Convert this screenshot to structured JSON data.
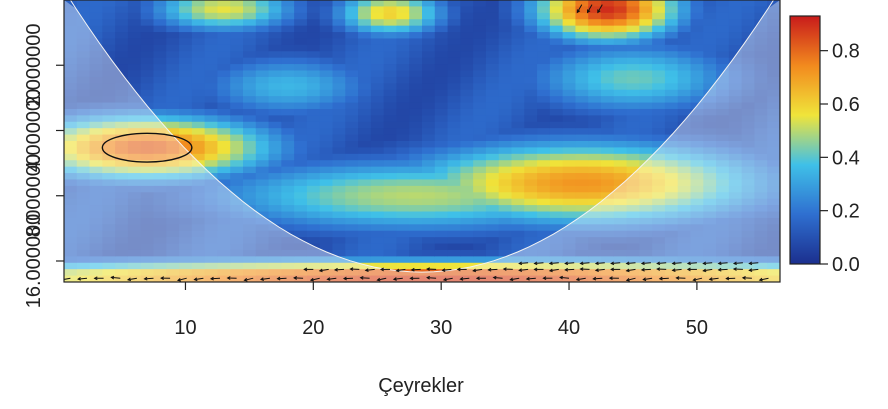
{
  "chart_data": {
    "type": "heatmap",
    "subtype": "wavelet-coherence",
    "xlabel": "Çeyrekler",
    "ylabel": "",
    "xlim": [
      1,
      56
    ],
    "x_ticks": [
      10,
      20,
      30,
      40,
      50
    ],
    "y_scale": "log2",
    "ylim_period": [
      1,
      20
    ],
    "y_ticks": [
      {
        "period": 2,
        "label": "2.000000"
      },
      {
        "period": 4,
        "label": "4.000000"
      },
      {
        "period": 8,
        "label": "8.000000"
      },
      {
        "period": 16,
        "label": "16.000000"
      }
    ],
    "colorbar": {
      "range": [
        0,
        0.93
      ],
      "ticks": [
        0.0,
        0.2,
        0.4,
        0.6,
        0.8
      ],
      "tick_labels": [
        "0.0",
        "0.2",
        "0.4",
        "0.6",
        "0.8"
      ],
      "colors": [
        "#1b2f8e",
        "#2f6fd0",
        "#3fc0e8",
        "#f0e43a",
        "#f28a1e",
        "#c81b1b"
      ]
    },
    "coherence_features": [
      {
        "x": 7,
        "period": 4.8,
        "value": 0.82,
        "sx": 7,
        "sy": 0.35
      },
      {
        "x": 43,
        "period": 1.1,
        "value": 0.9,
        "sx": 4,
        "sy": 0.35
      },
      {
        "x": 26,
        "period": 1.15,
        "value": 0.6,
        "sx": 3,
        "sy": 0.25
      },
      {
        "x": 13,
        "period": 1.1,
        "value": 0.55,
        "sx": 4,
        "sy": 0.25
      },
      {
        "x": 41,
        "period": 7.0,
        "value": 0.72,
        "sx": 10,
        "sy": 0.45
      },
      {
        "x": 28,
        "period": 8.0,
        "value": 0.5,
        "sx": 12,
        "sy": 0.4
      },
      {
        "x": 30,
        "period": 19.0,
        "value": 0.88,
        "sx": 30,
        "sy": 0.18
      },
      {
        "x": 45,
        "period": 2.3,
        "value": 0.42,
        "sx": 6,
        "sy": 0.4
      },
      {
        "x": 18,
        "period": 2.5,
        "value": 0.35,
        "sx": 5,
        "sy": 0.35
      }
    ],
    "significance_contours": [
      {
        "x": 7,
        "period": 4.8,
        "rx": 3.5,
        "rperiod": 0.22
      }
    ],
    "cone_of_influence": {
      "left_edge_x": 1,
      "right_edge_x": 56,
      "bottom_period": 18
    }
  }
}
